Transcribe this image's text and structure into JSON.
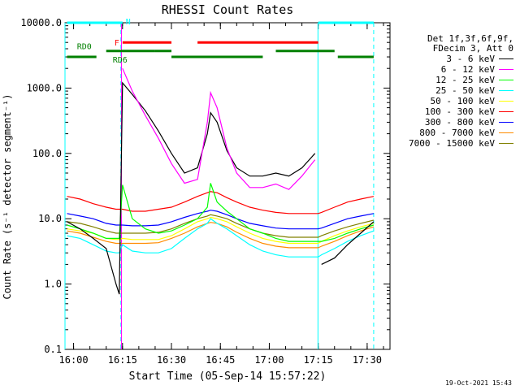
{
  "chart_data": {
    "type": "line",
    "title": "RHESSI Count Rates",
    "xlabel": "Start Time (05-Sep-14 15:57:22)",
    "ylabel": "Count Rate (s⁻¹ detector segment⁻¹)",
    "y_scale": "log",
    "ylim": [
      0.1,
      10000
    ],
    "xlim": [
      "15:57:22",
      "17:37:00"
    ],
    "x_ticks": [
      "16:00",
      "16:15",
      "16:30",
      "16:45",
      "17:00",
      "17:15",
      "17:30"
    ],
    "y_ticks": [
      "0.1",
      "1.0",
      "10.0",
      "100.0",
      "1000.0",
      "10000.0"
    ],
    "grid": false,
    "legend_position": "right",
    "legend_header": [
      "Det 1f,3f,6f,9f,",
      "FDecim 3, Att 0"
    ],
    "x": [
      "15:58",
      "16:02",
      "16:06",
      "16:10",
      "16:13",
      "16:14",
      "16:15",
      "16:18",
      "16:22",
      "16:26",
      "16:30",
      "16:34",
      "16:38",
      "16:41",
      "16:42",
      "16:44",
      "16:47",
      "16:50",
      "16:54",
      "16:58",
      "17:02",
      "17:06",
      "17:10",
      "17:14",
      "17:15",
      "17:16",
      "17:20",
      "17:24",
      "17:28",
      "17:32"
    ],
    "series": [
      {
        "name": "3 - 6 keV",
        "color": "#000000",
        "values": [
          9,
          7,
          5,
          3.5,
          1.0,
          0.7,
          1200,
          800,
          450,
          220,
          100,
          50,
          60,
          200,
          420,
          300,
          110,
          60,
          45,
          45,
          50,
          45,
          60,
          100,
          null,
          2,
          2.5,
          4,
          6,
          9
        ]
      },
      {
        "name": "6 - 12 keV",
        "color": "#ff00ff",
        "values": [
          null,
          null,
          null,
          null,
          null,
          null,
          2000,
          900,
          380,
          170,
          70,
          35,
          40,
          300,
          850,
          500,
          120,
          50,
          30,
          30,
          34,
          28,
          45,
          80,
          null,
          null,
          null,
          null,
          null,
          null
        ]
      },
      {
        "name": "12 - 25 keV",
        "color": "#00ff00",
        "values": [
          8,
          7,
          6,
          5,
          5,
          5,
          33,
          10,
          7,
          6,
          6.5,
          8,
          10,
          15,
          35,
          18,
          13,
          10,
          7,
          6,
          5,
          4.5,
          4.5,
          4.5,
          4.5,
          4.5,
          5,
          6,
          7,
          8
        ]
      },
      {
        "name": "25 - 50 keV",
        "color": "#00ffff",
        "values": [
          5.5,
          5,
          4,
          3.2,
          3,
          3,
          4,
          3.2,
          3,
          3,
          3.5,
          5,
          7,
          8.5,
          10,
          8.5,
          7,
          5.5,
          4,
          3.2,
          2.8,
          2.6,
          2.6,
          2.6,
          2.6,
          2.8,
          3.5,
          4.5,
          5.5,
          6.5
        ]
      },
      {
        "name": "50 - 100 keV",
        "color": "#ffff00",
        "values": [
          7,
          6.5,
          6,
          5,
          4.8,
          4.8,
          5,
          4.8,
          4.8,
          4.8,
          5.5,
          7,
          9,
          10,
          10.5,
          10,
          9,
          7.5,
          6,
          5,
          4.5,
          4.2,
          4.2,
          4.2,
          4.2,
          4.5,
          5.5,
          6.5,
          7.5,
          8.5
        ]
      },
      {
        "name": "100 - 300 keV",
        "color": "#ff0000",
        "values": [
          22,
          20,
          17,
          15,
          14,
          14,
          14,
          13,
          13,
          14,
          15,
          18,
          22,
          25,
          26,
          25,
          21,
          18,
          15,
          13.5,
          12.5,
          12,
          12,
          12,
          12,
          12.5,
          15,
          18,
          20,
          22
        ]
      },
      {
        "name": "300 - 800 keV",
        "color": "#0000ff",
        "values": [
          12,
          11,
          10,
          8.5,
          8,
          8,
          8,
          7.8,
          7.8,
          8,
          9,
          10.5,
          12,
          13,
          13.5,
          13,
          11.5,
          10,
          8.5,
          7.8,
          7.2,
          7,
          7,
          7,
          7,
          7.2,
          8.5,
          10,
          11,
          12
        ]
      },
      {
        "name": "800 - 7000 keV",
        "color": "#ff8c00",
        "values": [
          6.5,
          6,
          5.2,
          4.5,
          4.2,
          4.2,
          4.2,
          4.2,
          4.2,
          4.3,
          5,
          6,
          7.5,
          8.5,
          8.8,
          8.5,
          7.5,
          6.2,
          5,
          4.2,
          3.8,
          3.6,
          3.6,
          3.6,
          3.6,
          3.8,
          4.5,
          5.5,
          6.5,
          7.5
        ]
      },
      {
        "name": "7000 - 15000 keV",
        "color": "#808000",
        "values": [
          9,
          8.5,
          7.5,
          6.5,
          6,
          6,
          6,
          6,
          6,
          6.2,
          7,
          8.5,
          10,
          11,
          11.5,
          11,
          10,
          8.5,
          7,
          6,
          5.5,
          5.2,
          5.2,
          5.2,
          5.2,
          5.5,
          6.5,
          7.5,
          8.5,
          9.5
        ]
      }
    ],
    "vertical_lines": [
      {
        "x": "15:57:22",
        "color": "#00ffff",
        "style": "solid"
      },
      {
        "x": "16:14:30",
        "color": "#00ffff",
        "style": "dashed"
      },
      {
        "x": "16:14:40",
        "color": "#ff00ff",
        "style": "solid"
      },
      {
        "x": "17:14:55",
        "color": "#00ffff",
        "style": "solid"
      },
      {
        "x": "17:32:00",
        "color": "#00ffff",
        "style": "dashed"
      }
    ],
    "flag_bars": [
      {
        "label": "N",
        "color": "#00ffff",
        "y_level": 10000,
        "segments": [
          [
            "15:58",
            "16:15"
          ],
          [
            "17:15",
            "17:32"
          ]
        ]
      },
      {
        "label": "F",
        "color": "#ff0000",
        "y_level": 5000,
        "segments": [
          [
            "16:15",
            "16:30"
          ],
          [
            "16:38",
            "17:15"
          ]
        ]
      },
      {
        "label": "RD0",
        "color": "#008000",
        "y_level": 3700,
        "segments": [
          [
            "16:10",
            "16:25"
          ],
          [
            "16:25",
            "16:30"
          ],
          [
            "17:02",
            "17:20"
          ]
        ]
      },
      {
        "label": "RD6",
        "color": "#008000",
        "y_level": 3000,
        "segments": [
          [
            "15:58",
            "16:07"
          ],
          [
            "16:30",
            "16:58"
          ],
          [
            "17:21",
            "17:32"
          ]
        ]
      }
    ]
  },
  "timestamp": "19-Oct-2021 15:43"
}
